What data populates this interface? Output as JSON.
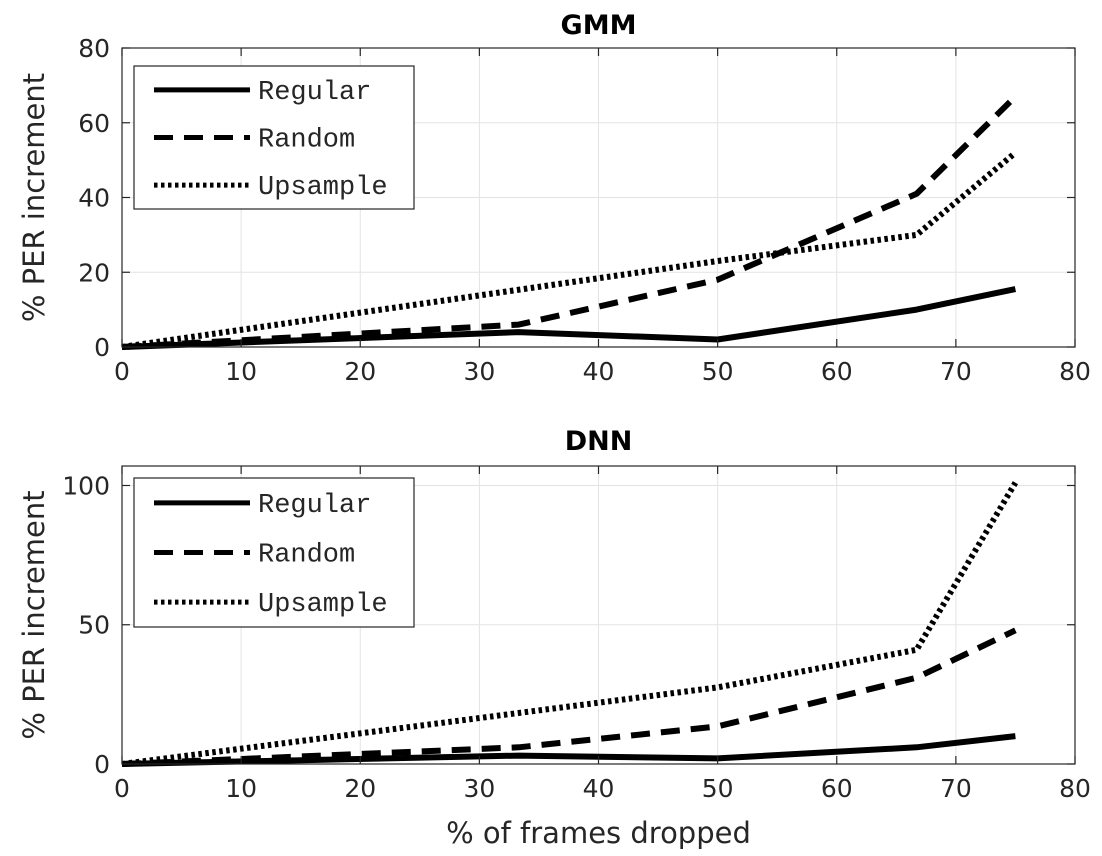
{
  "chart_data": [
    {
      "type": "line",
      "title": "GMM",
      "xlabel": "",
      "ylabel": "% PER increment",
      "xlim": [
        0,
        80
      ],
      "ylim": [
        0,
        80
      ],
      "xticks": [
        "0",
        "10",
        "20",
        "30",
        "40",
        "50",
        "60",
        "70",
        "80"
      ],
      "yticks": [
        "0",
        "20",
        "40",
        "60",
        "80"
      ],
      "grid": true,
      "legend_position": "top-left",
      "series": [
        {
          "name": "Regular",
          "style": "solid",
          "x": [
            0,
            33.3,
            50,
            66.7,
            75
          ],
          "y": [
            0,
            4,
            2,
            10,
            15.5
          ]
        },
        {
          "name": "Random",
          "style": "dashed",
          "x": [
            0,
            33.3,
            50,
            66.7,
            75
          ],
          "y": [
            0,
            6,
            18,
            41,
            67
          ]
        },
        {
          "name": "Upsample",
          "style": "dotted",
          "x": [
            0,
            50,
            66.7,
            75
          ],
          "y": [
            0,
            23,
            30,
            52
          ]
        }
      ]
    },
    {
      "type": "line",
      "title": "DNN",
      "xlabel": "% of frames dropped",
      "ylabel": "% PER increment",
      "xlim": [
        0,
        80
      ],
      "ylim": [
        0,
        107
      ],
      "xticks": [
        "0",
        "10",
        "20",
        "30",
        "40",
        "50",
        "60",
        "70",
        "80"
      ],
      "yticks": [
        "0",
        "50",
        "100"
      ],
      "grid": true,
      "legend_position": "top-left",
      "series": [
        {
          "name": "Regular",
          "style": "solid",
          "x": [
            0,
            33.3,
            50,
            66.7,
            75
          ],
          "y": [
            0,
            3,
            2,
            6,
            10
          ]
        },
        {
          "name": "Random",
          "style": "dashed",
          "x": [
            0,
            33.3,
            50,
            66.7,
            75
          ],
          "y": [
            0,
            6,
            13.5,
            31,
            48
          ]
        },
        {
          "name": "Upsample",
          "style": "dotted",
          "x": [
            0,
            50,
            66.7,
            75
          ],
          "y": [
            0,
            27.5,
            41,
            101
          ]
        }
      ]
    }
  ]
}
